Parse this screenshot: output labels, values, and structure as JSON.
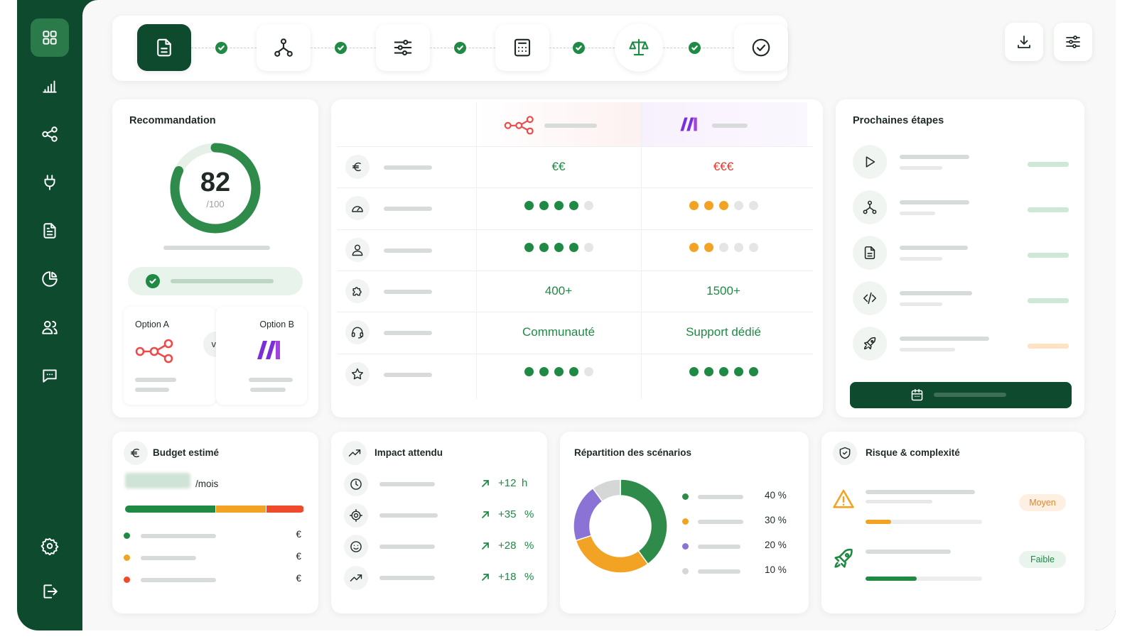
{
  "sidebar": {
    "items": [
      {
        "name": "grid-icon",
        "active": true
      },
      {
        "name": "bar-chart-icon"
      },
      {
        "name": "share-nodes-icon"
      },
      {
        "name": "plug-icon"
      },
      {
        "name": "document-icon"
      },
      {
        "name": "pie-chart-icon"
      },
      {
        "name": "users-icon"
      },
      {
        "name": "chat-icon"
      }
    ],
    "bottom": [
      {
        "name": "gear-icon"
      },
      {
        "name": "logout-icon"
      }
    ]
  },
  "stepper": {
    "steps": [
      {
        "icon": "document-icon",
        "active": true
      },
      {
        "icon": "flow-icon"
      },
      {
        "icon": "sliders-icon"
      },
      {
        "icon": "calculator-icon"
      },
      {
        "icon": "scale-icon"
      },
      {
        "icon": "check-circle-icon"
      }
    ]
  },
  "toolbar": {
    "buttons": [
      "download-icon",
      "sliders-icon"
    ]
  },
  "recommendation": {
    "title": "Recommandation",
    "score": "82",
    "score_max": "/100",
    "score_fraction": 0.82,
    "option_a": "Option A",
    "option_b": "Option B",
    "vs": "vs"
  },
  "comparison": {
    "rows": [
      {
        "icon": "euro-icon",
        "a": {
          "text": "€€",
          "color": "#1e8a44"
        },
        "b": {
          "text": "€€€",
          "color": "#e0382e"
        }
      },
      {
        "icon": "gauge-icon",
        "a": {
          "rating": 4,
          "color": "#1e8a44"
        },
        "b": {
          "rating": 3,
          "color": "#f2a323"
        }
      },
      {
        "icon": "user-icon",
        "a": {
          "rating": 4,
          "color": "#1e8a44"
        },
        "b": {
          "rating": 2,
          "color": "#f2a323"
        }
      },
      {
        "icon": "puzzle-icon",
        "a": {
          "text": "400+",
          "color": "#1e8a44"
        },
        "b": {
          "text": "1500+",
          "color": "#1e8a44"
        }
      },
      {
        "icon": "headset-icon",
        "a": {
          "text": "Communauté",
          "color": "#1e8a44"
        },
        "b": {
          "text": "Support dédié",
          "color": "#1e8a44"
        }
      },
      {
        "icon": "star-icon",
        "a": {
          "rating": 4,
          "color": "#1e8a44"
        },
        "b": {
          "rating": 5,
          "color": "#1e8a44"
        }
      }
    ]
  },
  "next_steps": {
    "title": "Prochaines étapes",
    "items": [
      {
        "icon": "play-icon"
      },
      {
        "icon": "flow-icon"
      },
      {
        "icon": "document-icon"
      },
      {
        "icon": "code-icon"
      },
      {
        "icon": "rocket-icon"
      }
    ]
  },
  "budget": {
    "title": "Budget estimé",
    "unit": "/mois",
    "segments": [
      {
        "fraction": 0.51,
        "color": "#1e8a44"
      },
      {
        "fraction": 0.28,
        "color": "#f2a323"
      },
      {
        "fraction": 0.21,
        "color": "#ee4a2b"
      }
    ],
    "lines": [
      {
        "color": "#1e8a44",
        "currency": "€"
      },
      {
        "color": "#f2a323",
        "currency": "€"
      },
      {
        "color": "#ee4a2b",
        "currency": "€"
      }
    ]
  },
  "impact": {
    "title": "Impact attendu",
    "rows": [
      {
        "icon": "clock-icon",
        "value": "+12",
        "unit": "h"
      },
      {
        "icon": "target-icon",
        "value": "+35",
        "unit": "%"
      },
      {
        "icon": "smile-icon",
        "value": "+28",
        "unit": "%"
      },
      {
        "icon": "trend-icon",
        "value": "+18",
        "unit": "%"
      }
    ]
  },
  "scenarios": {
    "title": "Répartition des scénarios",
    "chart_data": {
      "type": "pie",
      "values": [
        40,
        30,
        20,
        10
      ],
      "colors": [
        "#2e8b4a",
        "#f2a323",
        "#8b73d6",
        "#d4d7d6"
      ],
      "labels": [
        "40 %",
        "30 %",
        "20 %",
        "10 %"
      ]
    }
  },
  "risk": {
    "title": "Risque & complexité",
    "items": [
      {
        "icon": "warning-icon",
        "badge": "Moyen",
        "level": 0.22,
        "color": "#f2a323"
      },
      {
        "icon": "rocket-icon",
        "badge": "Faible",
        "level": 0.44,
        "color": "#1e8a44"
      }
    ]
  }
}
